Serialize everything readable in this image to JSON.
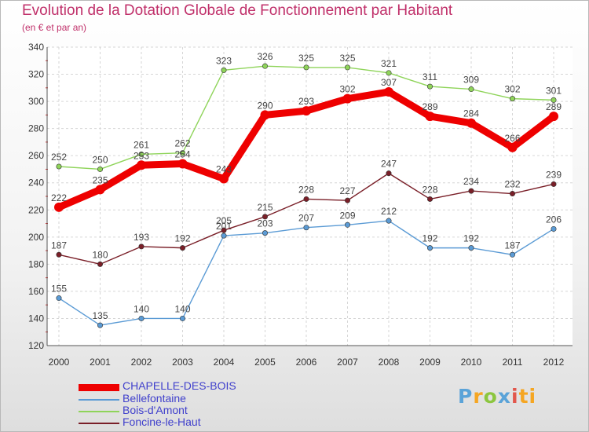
{
  "title": "Evolution de la Dotation Globale de Fonctionnement par Habitant",
  "subtitle": "(en € et par an)",
  "logo": [
    "P",
    "r",
    "o",
    "x",
    "i",
    "ti"
  ],
  "chart_data": {
    "type": "line",
    "title": "Evolution de la Dotation Globale de Fonctionnement par Habitant",
    "ylabel": "(en € et par an)",
    "xlabel": "",
    "x": [
      "2000",
      "2001",
      "2002",
      "2003",
      "2004",
      "2005",
      "2006",
      "2007",
      "2008",
      "2009",
      "2010",
      "2011",
      "2012"
    ],
    "ylim": [
      120,
      340
    ],
    "yticks": [
      120,
      140,
      160,
      180,
      200,
      220,
      240,
      260,
      280,
      300,
      320,
      340
    ],
    "grid": true,
    "legend_position": "bottom-left",
    "series": [
      {
        "name": "Bellefontaine",
        "color": "#5b9bd5",
        "values": [
          155,
          135,
          140,
          140,
          201,
          203,
          207,
          209,
          212,
          192,
          192,
          187,
          206
        ]
      },
      {
        "name": "Bois-d'Amont",
        "color": "#8fd45a",
        "values": [
          252,
          250,
          261,
          262,
          323,
          326,
          325,
          325,
          321,
          311,
          309,
          302,
          301
        ]
      },
      {
        "name": "Foncine-le-Haut",
        "color": "#7a1f28",
        "values": [
          187,
          180,
          193,
          192,
          205,
          215,
          228,
          227,
          247,
          228,
          234,
          232,
          239
        ]
      },
      {
        "name": "CHAPELLE-DES-BOIS",
        "color": "#ee0000",
        "values": [
          222,
          235,
          253,
          254,
          243,
          290,
          293,
          302,
          307,
          289,
          284,
          266,
          289
        ]
      }
    ]
  },
  "legend": [
    {
      "name": "CHAPELLE-DES-BOIS",
      "color": "#ee0000"
    },
    {
      "name": "Bellefontaine",
      "color": "#5b9bd5"
    },
    {
      "name": "Bois-d'Amont",
      "color": "#8fd45a"
    },
    {
      "name": "Foncine-le-Haut",
      "color": "#7a1f28"
    }
  ]
}
